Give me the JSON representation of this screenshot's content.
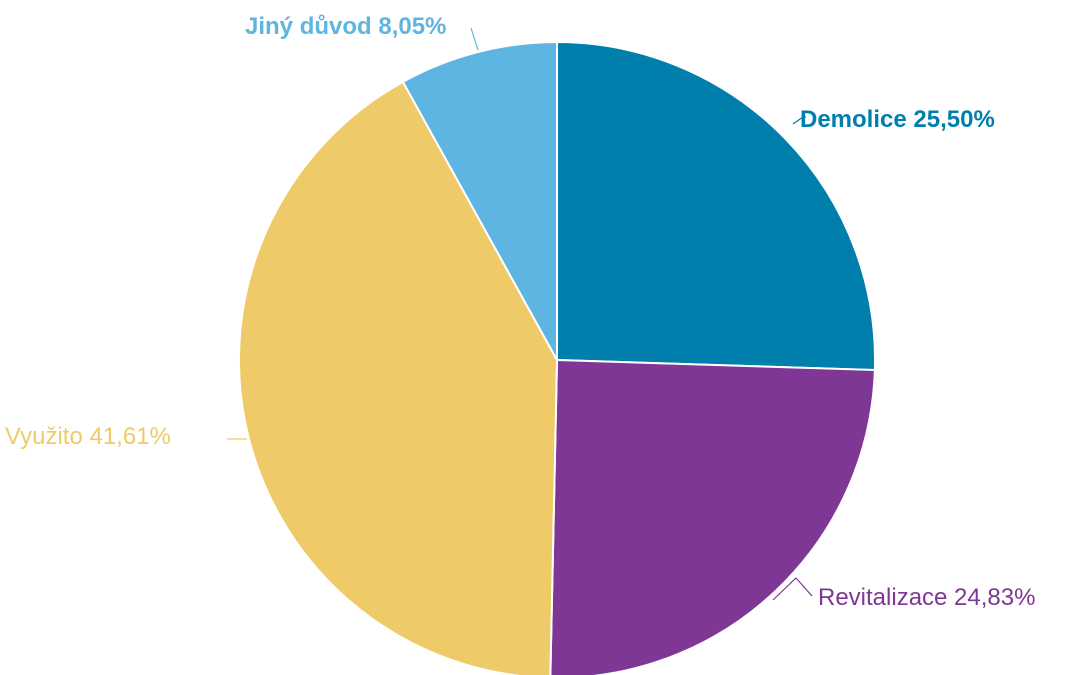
{
  "chart_data": {
    "type": "pie",
    "start_angle_deg": 0,
    "direction": "clockwise",
    "slices": [
      {
        "key": "demolice",
        "label": "Demolice",
        "value": 25.5,
        "display": "Demolice 25,50%",
        "color": "#007FAC",
        "label_weight": "bold"
      },
      {
        "key": "revitalizace",
        "label": "Revitalizace",
        "value": 24.83,
        "display": "Revitalizace 24,83%",
        "color": "#7E3794",
        "label_weight": "normal"
      },
      {
        "key": "vyuzito",
        "label": "Využito",
        "value": 41.61,
        "display": "Využito 41,61%",
        "color": "#EECB68",
        "label_weight": "normal"
      },
      {
        "key": "jiny-duvod",
        "label": "Jiný důvod",
        "value": 8.05,
        "display": "Jiný důvod 8,05%",
        "color": "#5EB5E2",
        "label_weight": "bold"
      }
    ]
  }
}
